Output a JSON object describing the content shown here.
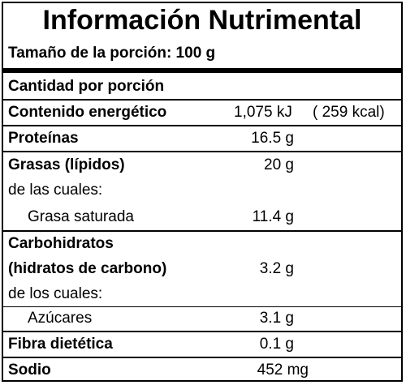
{
  "panel": {
    "title": "Información Nutrimental",
    "serving_size": "Tamaño de la porción: 100 g",
    "amount_per_serving": "Cantidad por porción"
  },
  "rows": {
    "energy": {
      "label": "Contenido energético",
      "value_kj": "1,075 kJ",
      "value_kcal": "( 259 kcal)"
    },
    "protein": {
      "label": "Proteínas",
      "value": "16.5 g"
    },
    "fats": {
      "label": "Grasas (lípidos)",
      "value": "20 g"
    },
    "fats_sub": {
      "label": "de las cuales:"
    },
    "saturated": {
      "label": "Grasa saturada",
      "value": "11.4 g"
    },
    "carbs": {
      "label_line1": "Carbohidratos",
      "label_line2": "(hidratos de carbono)",
      "value": "3.2 g"
    },
    "carbs_sub": {
      "label": "de los cuales:"
    },
    "sugars": {
      "label": "Azúcares",
      "value": "3.1 g"
    },
    "fiber": {
      "label": "Fibra dietética",
      "value": "0.1 g"
    },
    "sodium": {
      "label": "Sodio",
      "value": "452 mg"
    }
  }
}
